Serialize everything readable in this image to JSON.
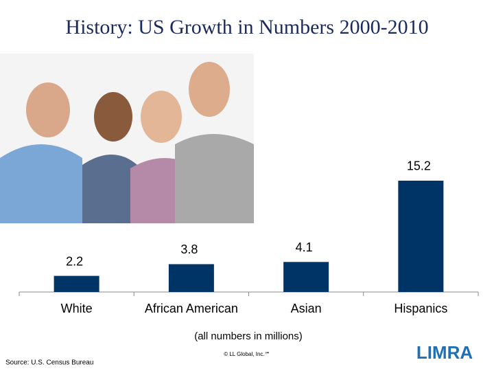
{
  "title": "History: US Growth in Numbers 2000-2010",
  "chart_data": {
    "type": "bar",
    "categories": [
      "White",
      "African American",
      "Asian",
      "Hispanics"
    ],
    "values": [
      2.2,
      3.8,
      4.1,
      15.2
    ],
    "color": "#003366"
  },
  "note": "(all numbers in millions)",
  "source": "Source: U.S. Census Bureau",
  "copyright": "© LL Global, Inc.℠",
  "logo": "LIMRA"
}
